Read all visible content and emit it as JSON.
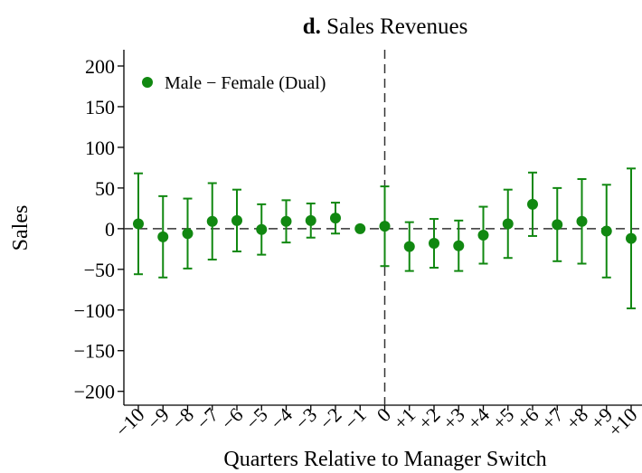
{
  "chart_data": {
    "type": "errorbar",
    "panel_label": "d.",
    "title": "Sales Revenues",
    "x_label": "Quarters Relative to Manager Switch",
    "y_label": "Sales",
    "categories": [
      "−10",
      "−9",
      "−8",
      "−7",
      "−6",
      "−5",
      "−4",
      "−3",
      "−2",
      "−1",
      "0",
      "+1",
      "+2",
      "+3",
      "+4",
      "+5",
      "+6",
      "+7",
      "+8",
      "+9",
      "+10"
    ],
    "series": [
      {
        "name": "Male − Female (Dual)",
        "color": "#118811",
        "values": [
          6,
          -10,
          -6,
          9,
          10,
          -1,
          9,
          10,
          13,
          0,
          3,
          -22,
          -18,
          -21,
          -8,
          6,
          30,
          5,
          9,
          -3,
          -12
        ],
        "errors": [
          62,
          50,
          43,
          47,
          38,
          31,
          26,
          21,
          19,
          0,
          49,
          30,
          30,
          31,
          35,
          42,
          39,
          45,
          52,
          57,
          86
        ]
      }
    ],
    "ylim": [
      -217,
      220
    ],
    "yticks": [
      {
        "value": -200,
        "label": "−200"
      },
      {
        "value": -150,
        "label": "−150"
      },
      {
        "value": -100,
        "label": "−100"
      },
      {
        "value": -50,
        "label": "−50"
      },
      0,
      50,
      100,
      150,
      200
    ],
    "legend": "upper left"
  }
}
